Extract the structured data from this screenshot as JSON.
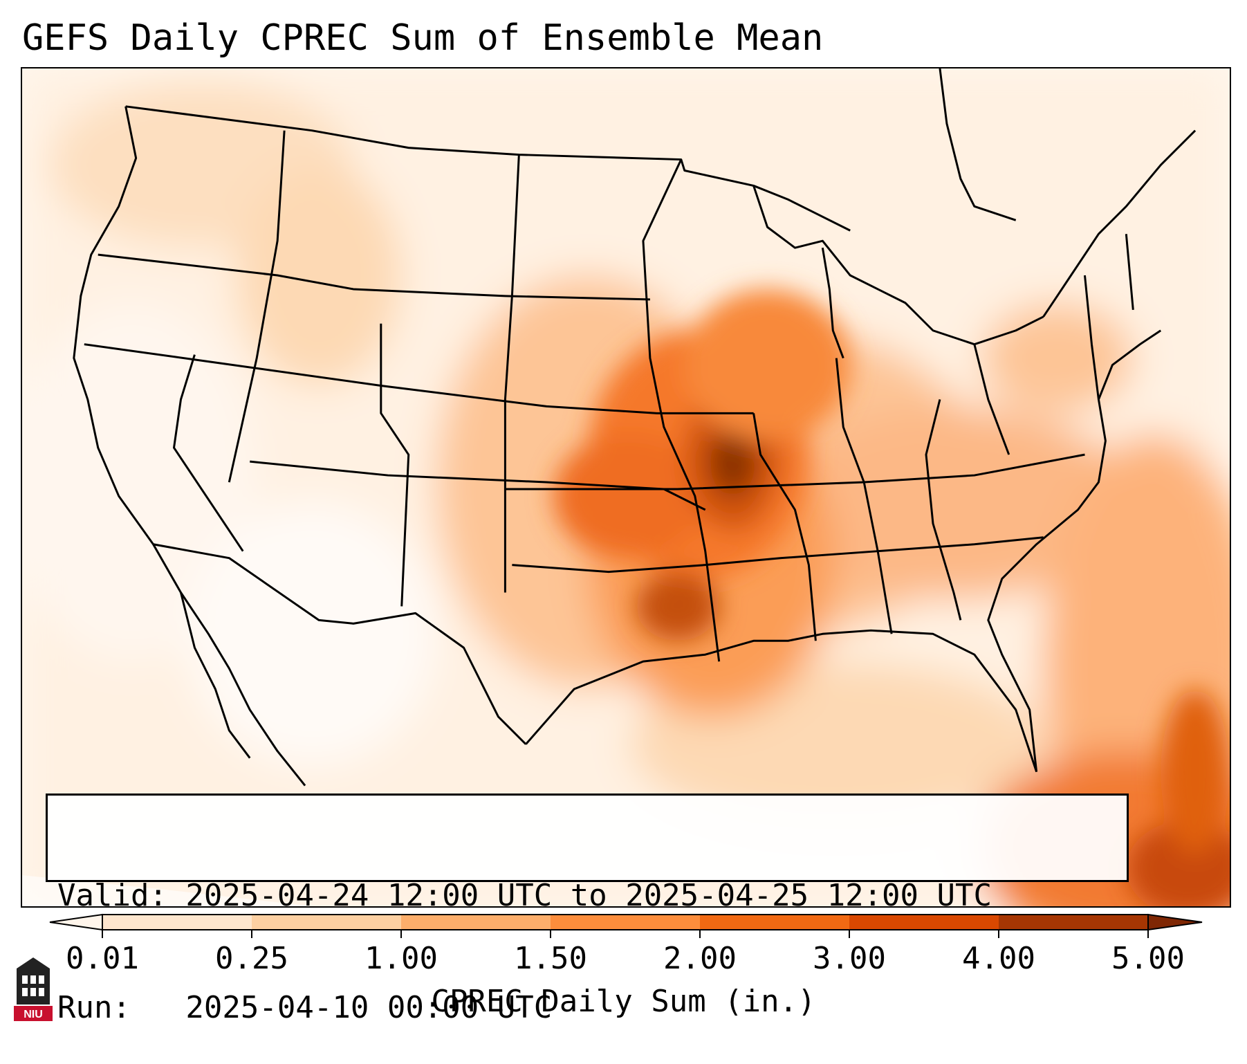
{
  "title": "GEFS Daily CPREC Sum of Ensemble Mean",
  "info": {
    "valid_line": "Valid: 2025-04-24 12:00 UTC to 2025-04-25 12:00 UTC",
    "run_line": "Run:   2025-04-10 00:00 UTC"
  },
  "colorbar": {
    "label": "CPREC Daily Sum (in.)",
    "ticks": [
      "0.01",
      "0.25",
      "1.00",
      "1.50",
      "2.00",
      "3.00",
      "4.00",
      "5.00"
    ],
    "colors": [
      "#fff5eb",
      "#fee6ce",
      "#fdd0a2",
      "#fdae6b",
      "#fd8d3c",
      "#f16913",
      "#d94801",
      "#a63603",
      "#7f2704"
    ]
  },
  "logo": {
    "text": "NIU",
    "icon": "university-tower-icon"
  }
}
